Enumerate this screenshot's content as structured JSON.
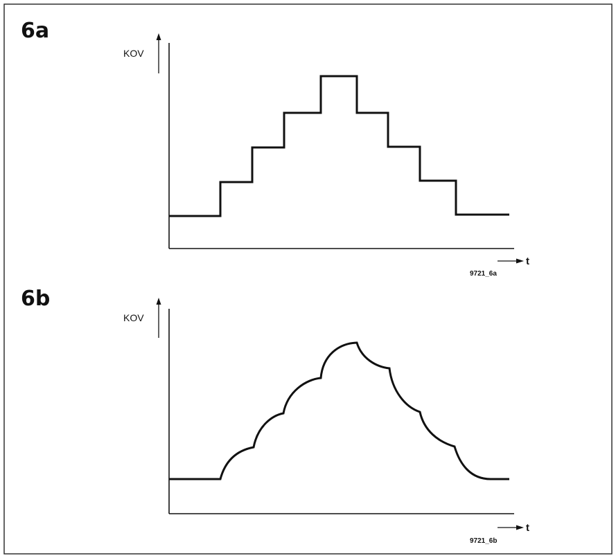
{
  "panels": [
    {
      "label": "6a",
      "ylabel": "KOV",
      "xlabel": "t",
      "figure_code": "9721_6a",
      "waveform": "staircase"
    },
    {
      "label": "6b",
      "ylabel": "KOV",
      "xlabel": "t",
      "figure_code": "9721_6b",
      "waveform": "scalloped"
    }
  ]
}
